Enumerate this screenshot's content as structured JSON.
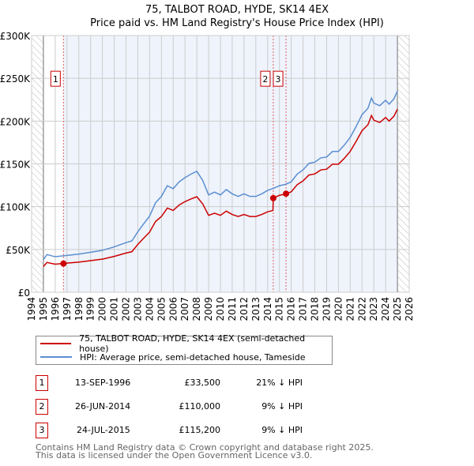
{
  "chart_data": {
    "type": "line",
    "title": "75, TALBOT ROAD, HYDE, SK14 4EX",
    "subtitle": "Price paid vs. HM Land Registry's House Price Index (HPI)",
    "xlim": [
      1994,
      2026
    ],
    "ylim": [
      0,
      300000
    ],
    "x_ticks": [
      "1994",
      "1995",
      "1996",
      "1997",
      "1998",
      "1999",
      "2000",
      "2001",
      "2002",
      "2003",
      "2004",
      "2005",
      "2006",
      "2007",
      "2008",
      "2009",
      "2010",
      "2011",
      "2012",
      "2013",
      "2014",
      "2015",
      "2016",
      "2017",
      "2018",
      "2019",
      "2020",
      "2021",
      "2022",
      "2023",
      "2024",
      "2025",
      "2026"
    ],
    "y_ticks": [
      {
        "v": 0,
        "label": "£0"
      },
      {
        "v": 50000,
        "label": "£50K"
      },
      {
        "v": 100000,
        "label": "£100K"
      },
      {
        "v": 150000,
        "label": "£150K"
      },
      {
        "v": 200000,
        "label": "£200K"
      },
      {
        "v": 250000,
        "label": "£250K"
      },
      {
        "v": 300000,
        "label": "£300K"
      }
    ],
    "grid": true,
    "hatched_ranges": [
      [
        1994,
        1995
      ],
      [
        2025,
        2026
      ]
    ],
    "shaded_from": 1996.7,
    "series": [
      {
        "name": "75, TALBOT ROAD, HYDE, SK14 4EX (semi-detached house)",
        "color": "#cc0000",
        "points": [
          [
            1995,
            30
          ],
          [
            1995.3,
            34.8
          ],
          [
            1996,
            32.8
          ],
          [
            1997,
            34
          ],
          [
            1998,
            35.2
          ],
          [
            1999,
            36.9
          ],
          [
            2000,
            38.7
          ],
          [
            2001,
            41.9
          ],
          [
            2002,
            45.8
          ],
          [
            2002.5,
            47.4
          ],
          [
            2003,
            55.9
          ],
          [
            2003.5,
            63.2
          ],
          [
            2004,
            70.3
          ],
          [
            2004.5,
            82.6
          ],
          [
            2005,
            88.5
          ],
          [
            2005.5,
            98.4
          ],
          [
            2006,
            95.6
          ],
          [
            2006.5,
            101.9
          ],
          [
            2007,
            105.9
          ],
          [
            2007.5,
            109
          ],
          [
            2008,
            111.7
          ],
          [
            2008.5,
            103.2
          ],
          [
            2009,
            89.8
          ],
          [
            2009.5,
            92.4
          ],
          [
            2010,
            89.8
          ],
          [
            2010.5,
            94.8
          ],
          [
            2011,
            90.9
          ],
          [
            2011.5,
            88.5
          ],
          [
            2012,
            90.9
          ],
          [
            2012.5,
            88.5
          ],
          [
            2013,
            88.5
          ],
          [
            2013.5,
            90.9
          ],
          [
            2014,
            94
          ],
          [
            2014.45,
            95.6
          ],
          [
            2014.48,
            110
          ],
          [
            2015,
            113.3
          ],
          [
            2015.5,
            114.7
          ],
          [
            2016,
            117.4
          ],
          [
            2016.5,
            125.6
          ],
          [
            2017,
            130.1
          ],
          [
            2017.5,
            137
          ],
          [
            2018,
            138.3
          ],
          [
            2018.5,
            142.9
          ],
          [
            2019,
            143.8
          ],
          [
            2019.5,
            149.7
          ],
          [
            2020,
            149.7
          ],
          [
            2020.5,
            156.5
          ],
          [
            2021,
            164.7
          ],
          [
            2021.5,
            176.3
          ],
          [
            2022,
            188.8
          ],
          [
            2022.5,
            195.7
          ],
          [
            2022.8,
            206.6
          ],
          [
            2023,
            201.1
          ],
          [
            2023.5,
            198.4
          ],
          [
            2024,
            204.2
          ],
          [
            2024.3,
            200
          ],
          [
            2024.7,
            205.7
          ],
          [
            2025,
            213.9
          ]
        ]
      },
      {
        "name": "HPI: Average price, semi-detached house, Tameside",
        "color": "#5b8fd0",
        "points": [
          [
            1995,
            38
          ],
          [
            1995.3,
            44
          ],
          [
            1996,
            41.5
          ],
          [
            1997,
            43
          ],
          [
            1998,
            44.5
          ],
          [
            1999,
            46.7
          ],
          [
            2000,
            49
          ],
          [
            2001,
            53
          ],
          [
            2002,
            58
          ],
          [
            2002.5,
            60
          ],
          [
            2003,
            70.7
          ],
          [
            2003.5,
            80
          ],
          [
            2004,
            89
          ],
          [
            2004.5,
            104.5
          ],
          [
            2005,
            112
          ],
          [
            2005.5,
            124.5
          ],
          [
            2006,
            121
          ],
          [
            2006.5,
            129
          ],
          [
            2007,
            134
          ],
          [
            2007.5,
            138
          ],
          [
            2008,
            141.4
          ],
          [
            2008.5,
            130.6
          ],
          [
            2009,
            113.7
          ],
          [
            2009.5,
            117
          ],
          [
            2010,
            113.7
          ],
          [
            2010.5,
            120
          ],
          [
            2011,
            115
          ],
          [
            2011.5,
            112
          ],
          [
            2012,
            115
          ],
          [
            2012.5,
            112
          ],
          [
            2013,
            112
          ],
          [
            2013.5,
            115
          ],
          [
            2014,
            119
          ],
          [
            2014.5,
            121.4
          ],
          [
            2015,
            124.5
          ],
          [
            2015.5,
            126
          ],
          [
            2016,
            129
          ],
          [
            2016.5,
            138
          ],
          [
            2017,
            143
          ],
          [
            2017.5,
            150.6
          ],
          [
            2018,
            152
          ],
          [
            2018.5,
            157
          ],
          [
            2019,
            158
          ],
          [
            2019.5,
            164.5
          ],
          [
            2020,
            164.5
          ],
          [
            2020.5,
            172
          ],
          [
            2021,
            181
          ],
          [
            2021.5,
            193.7
          ],
          [
            2022,
            207.5
          ],
          [
            2022.5,
            215
          ],
          [
            2022.8,
            227
          ],
          [
            2023,
            221
          ],
          [
            2023.5,
            218
          ],
          [
            2024,
            224.4
          ],
          [
            2024.3,
            219.8
          ],
          [
            2024.7,
            226
          ],
          [
            2025,
            235
          ]
        ]
      }
    ],
    "sales": [
      {
        "id": "1",
        "x": 1996.7,
        "value": 33500
      },
      {
        "id": "2",
        "x": 2014.48,
        "value": 110000
      },
      {
        "id": "3",
        "x": 2015.56,
        "value": 115200
      }
    ]
  },
  "legend": {
    "property": "75, TALBOT ROAD, HYDE, SK14 4EX (semi-detached house)",
    "hpi": "HPI: Average price, semi-detached house, Tameside"
  },
  "transactions": [
    {
      "id": "1",
      "date": "13-SEP-1996",
      "price": "£33,500",
      "hpi": "21% ↓ HPI"
    },
    {
      "id": "2",
      "date": "26-JUN-2014",
      "price": "£110,000",
      "hpi": "9% ↓ HPI"
    },
    {
      "id": "3",
      "date": "24-JUL-2015",
      "price": "£115,200",
      "hpi": "9% ↓ HPI"
    }
  ],
  "footer": {
    "line1": "Contains HM Land Registry data © Crown copyright and database right 2025.",
    "line2": "This data is licensed under the Open Government Licence v3.0."
  }
}
